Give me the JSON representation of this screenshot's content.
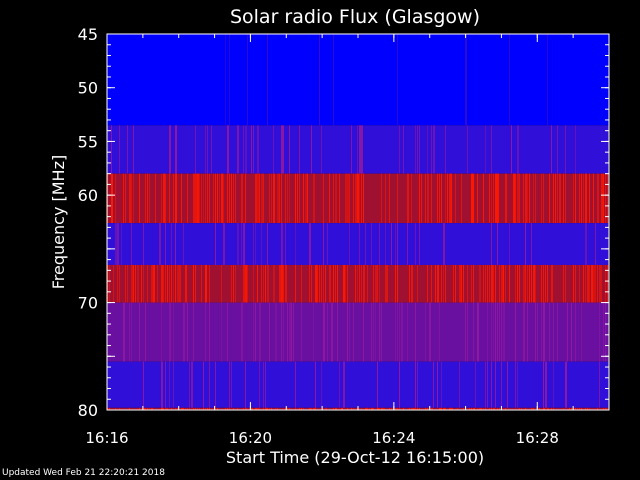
{
  "chart_data": {
    "type": "heatmap",
    "title": "Solar radio Flux (Glasgow)",
    "xlabel": "Start Time (29-Oct-12 16:15:00)",
    "ylabel": "Frequency [MHz]",
    "x_range_minutes": [
      16.0,
      30.0
    ],
    "x_ticks": [
      {
        "minute": 16,
        "label": "16:16"
      },
      {
        "minute": 20,
        "label": "16:20"
      },
      {
        "minute": 24,
        "label": "16:24"
      },
      {
        "minute": 28,
        "label": "16:28"
      }
    ],
    "ylim": [
      45,
      80
    ],
    "y_reversed": true,
    "y_ticks": [
      45,
      50,
      55,
      60,
      65,
      70,
      75,
      80
    ],
    "y_tick_labels": [
      "45",
      "50",
      "55",
      "60",
      "",
      "70",
      "",
      "80"
    ],
    "frequency_bands": [
      {
        "from": 45.0,
        "to": 53.5,
        "level": "low"
      },
      {
        "from": 53.5,
        "to": 58.0,
        "level": "medium-low"
      },
      {
        "from": 58.0,
        "to": 62.6,
        "level": "high"
      },
      {
        "from": 62.6,
        "to": 66.5,
        "level": "medium-low"
      },
      {
        "from": 66.5,
        "to": 70.0,
        "level": "high"
      },
      {
        "from": 70.0,
        "to": 75.5,
        "level": "medium"
      },
      {
        "from": 75.5,
        "to": 79.8,
        "level": "medium-low"
      },
      {
        "from": 79.8,
        "to": 80.0,
        "level": "high"
      }
    ],
    "colors": {
      "low": "#0000ff",
      "medium-low": "#3010d8",
      "medium": "#6a10a0",
      "high": "#a01030",
      "peak": "#ff2000"
    }
  },
  "footer": {
    "updated": "Updated Wed Feb 21 22:20:21 2018"
  }
}
